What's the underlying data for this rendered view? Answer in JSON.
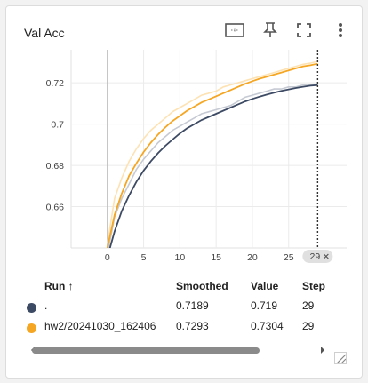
{
  "card": {
    "title": "Val Acc",
    "toolbar": [
      {
        "name": "fit-domain-button",
        "icon": "fit-to-data-icon"
      },
      {
        "name": "pin-button",
        "icon": "pin-icon"
      },
      {
        "name": "fullscreen-button",
        "icon": "fullscreen-icon"
      },
      {
        "name": "more-options-button",
        "icon": "more-vert-icon"
      }
    ]
  },
  "chart_data": {
    "type": "line",
    "title": "Val Acc",
    "xlabel": "",
    "ylabel": "",
    "xlim": [
      -5,
      33
    ],
    "ylim": [
      0.64,
      0.736
    ],
    "x_ticks": [
      0,
      5,
      10,
      15,
      20,
      25
    ],
    "x_tick_labels": [
      "0",
      "5",
      "10",
      "15",
      "20",
      "25"
    ],
    "y_ticks": [
      0.66,
      0.68,
      0.7,
      0.72
    ],
    "y_tick_labels": [
      "0.66",
      "0.68",
      "0.7",
      "0.72"
    ],
    "grid": true,
    "hover_step_label": "29",
    "hover_step": 29,
    "series": [
      {
        "color": "#3d4a63",
        "raw_color": "#c5cad3",
        "x": [
          0,
          1,
          2,
          3,
          4,
          5,
          6,
          7,
          8,
          9,
          10,
          11,
          12,
          13,
          14,
          15,
          16,
          17,
          18,
          19,
          20,
          21,
          22,
          23,
          24,
          25,
          26,
          27,
          28,
          29
        ],
        "smoothed": [
          0.6355,
          0.648,
          0.658,
          0.6655,
          0.672,
          0.6775,
          0.682,
          0.686,
          0.6895,
          0.6925,
          0.6955,
          0.698,
          0.7,
          0.702,
          0.7035,
          0.705,
          0.7065,
          0.708,
          0.7095,
          0.711,
          0.7122,
          0.7133,
          0.7143,
          0.7152,
          0.7161,
          0.7168,
          0.7175,
          0.7181,
          0.7186,
          0.7189
        ],
        "raw": [
          0.637,
          0.655,
          0.664,
          0.671,
          0.678,
          0.683,
          0.687,
          0.691,
          0.694,
          0.697,
          0.699,
          0.701,
          0.703,
          0.705,
          0.706,
          0.707,
          0.708,
          0.709,
          0.711,
          0.713,
          0.714,
          0.715,
          0.716,
          0.717,
          0.717,
          0.718,
          0.718,
          0.719,
          0.719,
          0.719
        ]
      },
      {
        "color": "#f5a623",
        "raw_color": "#fde2b3",
        "x": [
          0,
          1,
          2,
          3,
          4,
          5,
          6,
          7,
          8,
          9,
          10,
          11,
          12,
          13,
          14,
          15,
          16,
          17,
          18,
          19,
          20,
          21,
          22,
          23,
          24,
          25,
          26,
          27,
          28,
          29
        ],
        "smoothed": [
          0.64,
          0.656,
          0.6665,
          0.675,
          0.681,
          0.6865,
          0.691,
          0.695,
          0.6985,
          0.7015,
          0.704,
          0.7065,
          0.7085,
          0.7105,
          0.712,
          0.7135,
          0.715,
          0.7165,
          0.718,
          0.7195,
          0.7208,
          0.722,
          0.723,
          0.724,
          0.725,
          0.726,
          0.727,
          0.728,
          0.7285,
          0.7293
        ],
        "raw": [
          0.642,
          0.664,
          0.674,
          0.682,
          0.688,
          0.693,
          0.697,
          0.7,
          0.703,
          0.706,
          0.708,
          0.71,
          0.712,
          0.714,
          0.715,
          0.716,
          0.718,
          0.719,
          0.72,
          0.721,
          0.722,
          0.723,
          0.724,
          0.725,
          0.726,
          0.727,
          0.728,
          0.729,
          0.7295,
          0.7304
        ]
      }
    ]
  },
  "table": {
    "headers": {
      "run": "Run ↑",
      "smoothed": "Smoothed",
      "value": "Value",
      "step": "Step"
    },
    "rows": [
      {
        "color": "#3d4a63",
        "run": ".",
        "smoothed": "0.7189",
        "value": "0.719",
        "step": "29"
      },
      {
        "color": "#f5a623",
        "run": "hw2/20241030_162406",
        "smoothed": "0.7293",
        "value": "0.7304",
        "step": "29"
      }
    ]
  }
}
